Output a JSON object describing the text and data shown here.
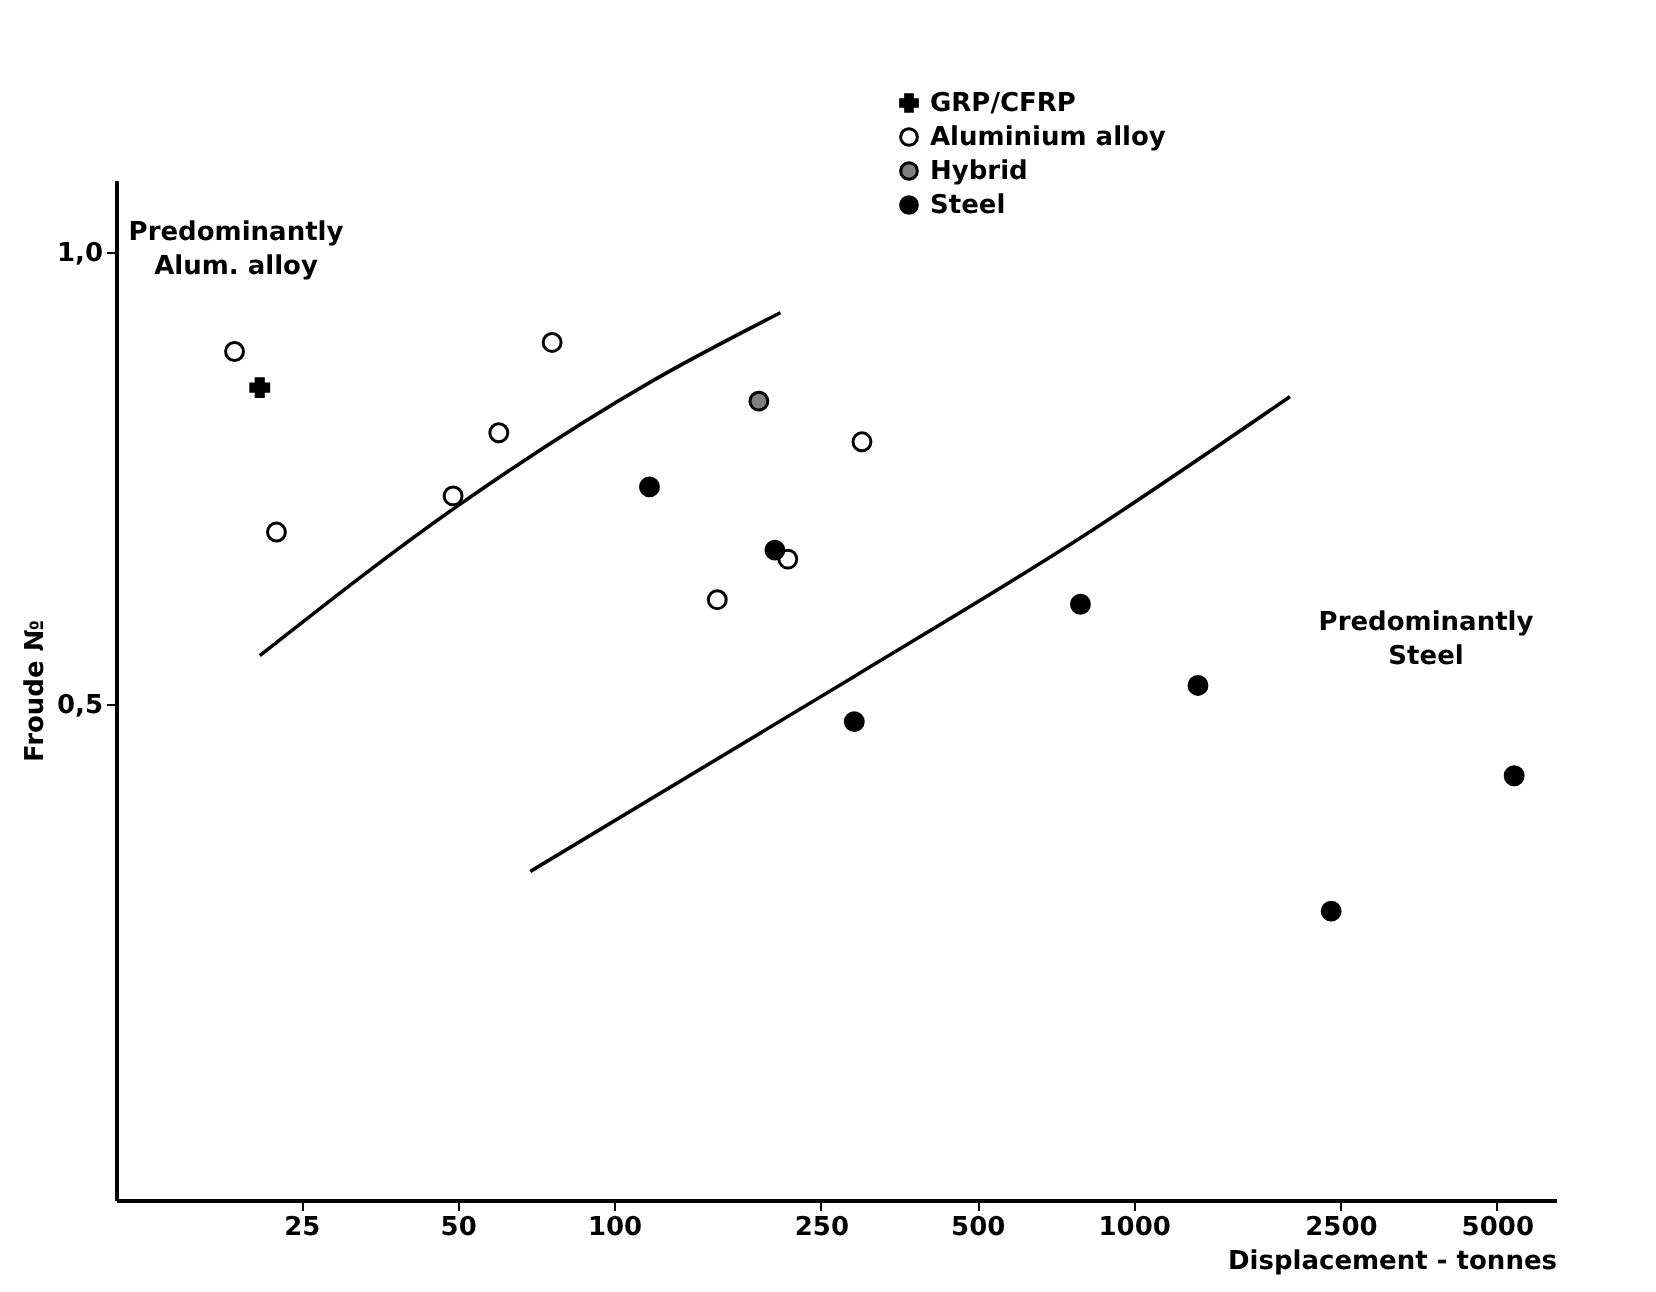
{
  "chart_data": {
    "type": "scatter",
    "xlabel": "Displacement - tonnes",
    "ylabel": "Froude №",
    "log": "x",
    "xlim": [
      11,
      6500
    ],
    "ylim": [
      -0.05,
      1.08
    ],
    "xticks": [
      25,
      50,
      100,
      250,
      500,
      1000,
      2500,
      5000
    ],
    "yticks": [
      {
        "value": 0.5,
        "label": "0,5"
      },
      {
        "value": 1.0,
        "label": "1,0"
      }
    ],
    "legend": "top",
    "grid": false,
    "series": [
      {
        "name": "GRP/CFRP",
        "color": "#000000",
        "marker": "cross",
        "x": [
          20.8
        ],
        "values": [
          0.85
        ]
      },
      {
        "name": "Aluminium alloy",
        "color": "#ffffff",
        "marker": "circle",
        "x": [
          18.6,
          22.4,
          49,
          60,
          76,
          158,
          216,
          300
        ],
        "values": [
          0.89,
          0.69,
          0.73,
          0.8,
          0.9,
          0.615,
          0.66,
          0.79
        ]
      },
      {
        "name": "Hybrid",
        "color": "#808080",
        "marker": "circle",
        "x": [
          190
        ],
        "values": [
          0.835
        ]
      },
      {
        "name": "Steel",
        "color": "#000000",
        "marker": "circle",
        "x": [
          117,
          204,
          290,
          790,
          1330,
          2400,
          5400
        ],
        "values": [
          0.74,
          0.67,
          0.48,
          0.61,
          0.52,
          0.27,
          0.42
        ]
      },
      {
        "type": "line",
        "color": "#000000",
        "x": [
          20.8,
          50,
          119,
          209
        ],
        "values": [
          0.553,
          0.719,
          0.858,
          0.933
        ]
      },
      {
        "type": "line",
        "color": "#000000",
        "x": [
          69,
          290,
          773,
          2000
        ],
        "values": [
          0.314,
          0.53,
          0.68,
          0.84
        ]
      }
    ],
    "annotations": [
      "Predominantly\nAlum. alloy",
      "Predominantly\nSteel"
    ]
  }
}
